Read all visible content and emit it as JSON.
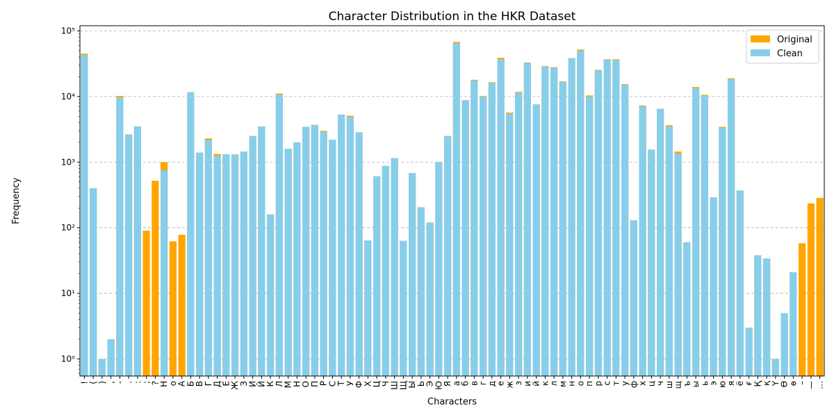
{
  "chart_data": {
    "type": "bar",
    "title": "Character Distribution in the HKR Dataset",
    "xlabel": "Characters",
    "ylabel": "Frequency",
    "yscale": "log",
    "ylim": [
      0.55,
      120000
    ],
    "grid": "y-dashed",
    "legend_position": "top-right",
    "colors": {
      "Original": "#FFA500",
      "Clean": "#87CEEB"
    },
    "categories": [
      "!",
      "(",
      ")",
      ",",
      "-",
      ".",
      ":",
      ";",
      "?",
      "H",
      "o",
      "А",
      "Б",
      "В",
      "Г",
      "Д",
      "Е",
      "Ж",
      "З",
      "И",
      "Й",
      "К",
      "Л",
      "М",
      "Н",
      "О",
      "П",
      "Р",
      "С",
      "Т",
      "У",
      "Ф",
      "Х",
      "Ц",
      "Ч",
      "Ш",
      "Щ",
      "Ы",
      "Ь",
      "Э",
      "Ю",
      "Я",
      "а",
      "б",
      "в",
      "г",
      "д",
      "е",
      "ж",
      "з",
      "и",
      "й",
      "к",
      "л",
      "м",
      "н",
      "о",
      "п",
      "р",
      "с",
      "т",
      "у",
      "ф",
      "х",
      "ц",
      "ч",
      "ш",
      "щ",
      "ъ",
      "ы",
      "ь",
      "э",
      "ю",
      "я",
      "ё",
      "ғ",
      "Қ",
      "қ",
      "Ү",
      "Ө",
      "ө",
      "–",
      "—",
      "…"
    ],
    "series": [
      {
        "name": "Original",
        "values": [
          45000,
          400,
          1,
          2,
          10200,
          2650,
          3500,
          90,
          520,
          1000,
          62,
          78,
          11600,
          1400,
          2300,
          1330,
          1320,
          1310,
          1450,
          2500,
          3500,
          160,
          11100,
          1600,
          2000,
          3450,
          3700,
          3000,
          2200,
          5300,
          5100,
          2850,
          64,
          610,
          880,
          1150,
          63,
          680,
          205,
          120,
          1000,
          2500,
          68000,
          8800,
          18000,
          10200,
          16500,
          39000,
          5700,
          11800,
          33000,
          7600,
          29000,
          28000,
          17000,
          38500,
          52000,
          10400,
          25500,
          37000,
          37000,
          15400,
          130,
          7300,
          1550,
          6500,
          3650,
          1450,
          60,
          14000,
          10600,
          290,
          3450,
          19000,
          370,
          3,
          38,
          34,
          1,
          5,
          21,
          58,
          235,
          285
        ]
      },
      {
        "name": "Clean",
        "values": [
          43000,
          400,
          1,
          2,
          9700,
          2650,
          3500,
          0,
          0,
          750,
          0,
          0,
          11600,
          1400,
          2180,
          1250,
          1320,
          1310,
          1450,
          2500,
          3500,
          160,
          10700,
          1600,
          2000,
          3450,
          3700,
          2900,
          2200,
          5300,
          4900,
          2850,
          64,
          610,
          880,
          1150,
          63,
          680,
          205,
          120,
          1000,
          2500,
          65000,
          8800,
          17500,
          10000,
          16200,
          37000,
          5500,
          11500,
          33000,
          7600,
          28500,
          27500,
          16700,
          38500,
          50000,
          10000,
          25000,
          36500,
          36000,
          15000,
          130,
          7100,
          1550,
          6500,
          3500,
          1350,
          60,
          13500,
          10300,
          290,
          3350,
          18500,
          370,
          3,
          38,
          34,
          1,
          5,
          21,
          0,
          0,
          0
        ]
      }
    ],
    "yticks": [
      {
        "value": 1,
        "label": "10⁰"
      },
      {
        "value": 10,
        "label": "10¹"
      },
      {
        "value": 100,
        "label": "10²"
      },
      {
        "value": 1000,
        "label": "10³"
      },
      {
        "value": 10000,
        "label": "10⁴"
      },
      {
        "value": 100000,
        "label": "10⁵"
      }
    ]
  }
}
